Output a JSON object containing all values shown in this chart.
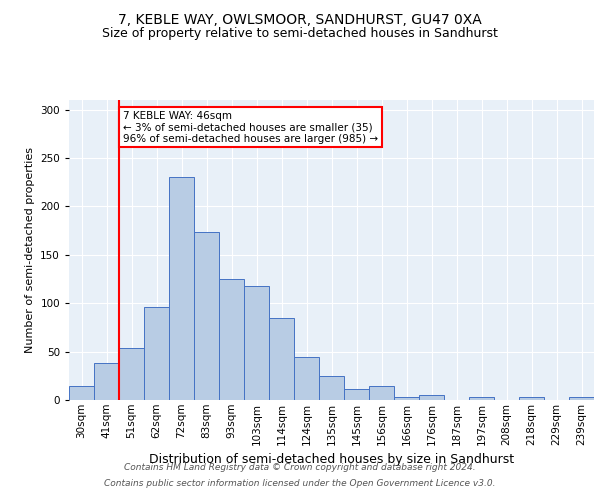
{
  "title1": "7, KEBLE WAY, OWLSMOOR, SANDHURST, GU47 0XA",
  "title2": "Size of property relative to semi-detached houses in Sandhurst",
  "xlabel": "Distribution of semi-detached houses by size in Sandhurst",
  "ylabel": "Number of semi-detached properties",
  "footer1": "Contains HM Land Registry data © Crown copyright and database right 2024.",
  "footer2": "Contains public sector information licensed under the Open Government Licence v3.0.",
  "categories": [
    "30sqm",
    "41sqm",
    "51sqm",
    "62sqm",
    "72sqm",
    "83sqm",
    "93sqm",
    "103sqm",
    "114sqm",
    "124sqm",
    "135sqm",
    "145sqm",
    "156sqm",
    "166sqm",
    "176sqm",
    "187sqm",
    "197sqm",
    "208sqm",
    "218sqm",
    "229sqm",
    "239sqm"
  ],
  "values": [
    14,
    38,
    54,
    96,
    230,
    174,
    125,
    118,
    85,
    44,
    25,
    11,
    14,
    3,
    5,
    0,
    3,
    0,
    3,
    0,
    3
  ],
  "bar_color": "#b8cce4",
  "bar_edge_color": "#4472c4",
  "property_line_x": 1.5,
  "property_label": "7 KEBLE WAY: 46sqm",
  "annotation_line1": "← 3% of semi-detached houses are smaller (35)",
  "annotation_line2": "96% of semi-detached houses are larger (985) →",
  "annotation_box_color": "white",
  "annotation_box_edge": "red",
  "red_line_color": "red",
  "ylim": [
    0,
    310
  ],
  "yticks": [
    0,
    50,
    100,
    150,
    200,
    250,
    300
  ],
  "background_color": "#e8f0f8",
  "title1_fontsize": 10,
  "title2_fontsize": 9,
  "xlabel_fontsize": 9,
  "ylabel_fontsize": 8,
  "tick_fontsize": 7.5,
  "footer_fontsize": 6.5,
  "annot_fontsize": 7.5
}
